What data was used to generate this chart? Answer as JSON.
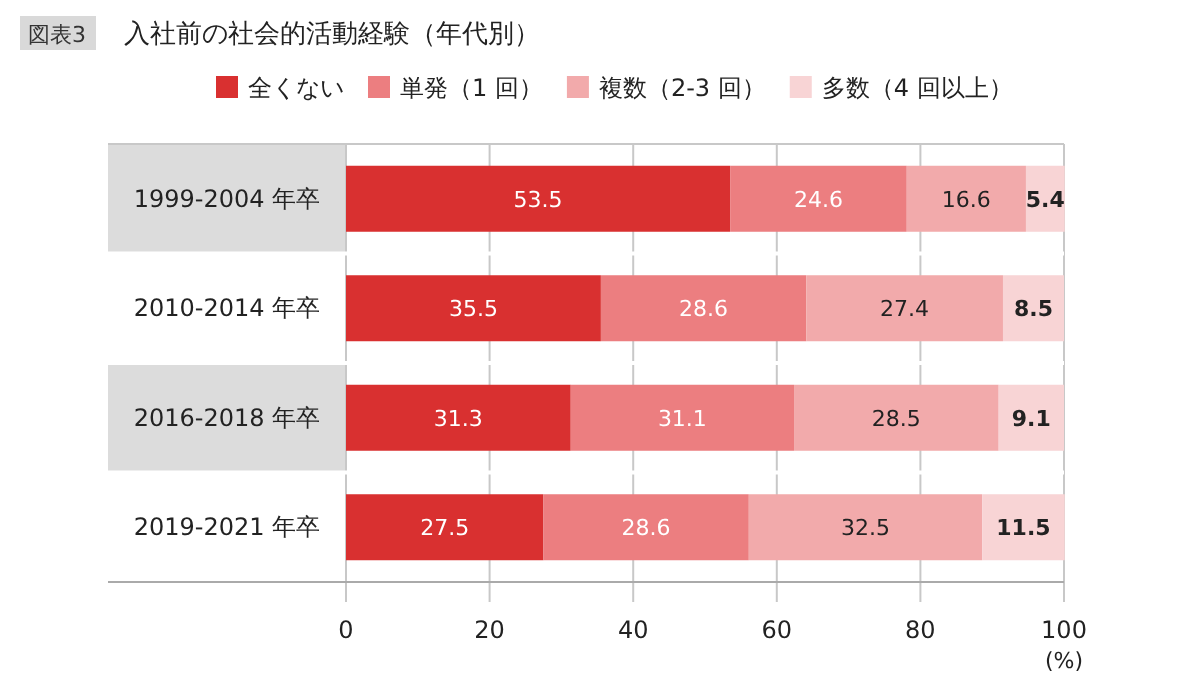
{
  "chart_data": {
    "type": "bar",
    "orientation": "horizontal",
    "stacked": true,
    "title": "入社前の社会的活動経験（年代別）",
    "annotations": [
      "図表3"
    ],
    "xlabel": "(%)",
    "categories": [
      "1999-2004 年卒",
      "2010-2014 年卒",
      "2016-2018 年卒",
      "2019-2021 年卒"
    ],
    "series": [
      {
        "name": "全くない",
        "color": "#d93030",
        "values": [
          53.5,
          35.5,
          31.3,
          27.5
        ]
      },
      {
        "name": "単発（1 回）",
        "color": "#ec7e80",
        "values": [
          24.6,
          28.6,
          31.1,
          28.6
        ]
      },
      {
        "name": "複数（2-3 回）",
        "color": "#f2aaab",
        "values": [
          16.6,
          27.4,
          28.5,
          32.5
        ]
      },
      {
        "name": "多数（4 回以上）",
        "color": "#f8d4d5",
        "values": [
          5.4,
          8.5,
          9.1,
          11.5
        ]
      }
    ],
    "xlim": [
      0,
      100
    ],
    "xticks": [
      0,
      20,
      40,
      60,
      80,
      100
    ],
    "grid": "x",
    "legend": "top",
    "data_labels": true
  }
}
